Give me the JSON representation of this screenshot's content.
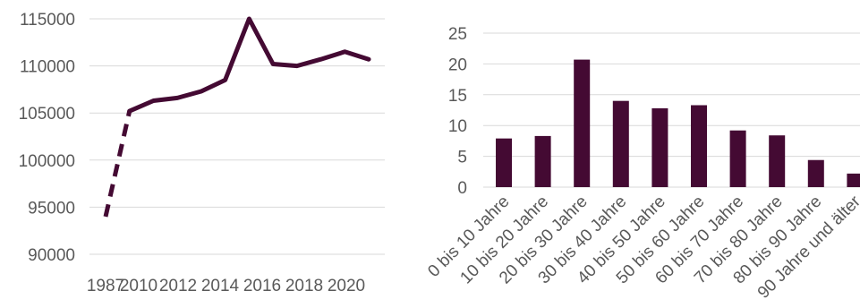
{
  "chart_data": [
    {
      "type": "line",
      "x": [
        "1987",
        "2010",
        "2012",
        "2014",
        "2016",
        "2018",
        "2020"
      ],
      "x_values": [
        1987,
        2010,
        2011,
        2012,
        2013,
        2014,
        2015,
        2016,
        2017,
        2018,
        2019,
        2020
      ],
      "series": [
        {
          "values": [
            94000,
            105200,
            106300,
            106600,
            107300,
            108500,
            115000,
            110200,
            110000,
            110700,
            111500,
            110700
          ],
          "dashed_segment": [
            "1987",
            "2010"
          ]
        }
      ],
      "y_ticks": [
        "90000",
        "95000",
        "100000",
        "105000",
        "110000",
        "115000"
      ],
      "ylim": [
        90000,
        115000
      ],
      "grid": true,
      "color": "#440a33"
    },
    {
      "type": "bar",
      "categories": [
        "0 bis 10 Jahre",
        "10 bis 20 Jahre",
        "20 bis 30 Jahre",
        "30 bis 40 Jahre",
        "40 bis 50 Jahre",
        "50 bis 60 Jahre",
        "60 bis 70 Jahre",
        "70 bis 80 Jahre",
        "80 bis 90 Jahre",
        "90 Jahre und älter"
      ],
      "values": [
        7.9,
        8.3,
        20.7,
        14.0,
        12.8,
        13.3,
        9.2,
        8.4,
        4.4,
        2.2
      ],
      "y_ticks": [
        "0",
        "5",
        "10",
        "15",
        "20",
        "25"
      ],
      "ylim": [
        0,
        25
      ],
      "grid": true,
      "color": "#440a33"
    }
  ]
}
